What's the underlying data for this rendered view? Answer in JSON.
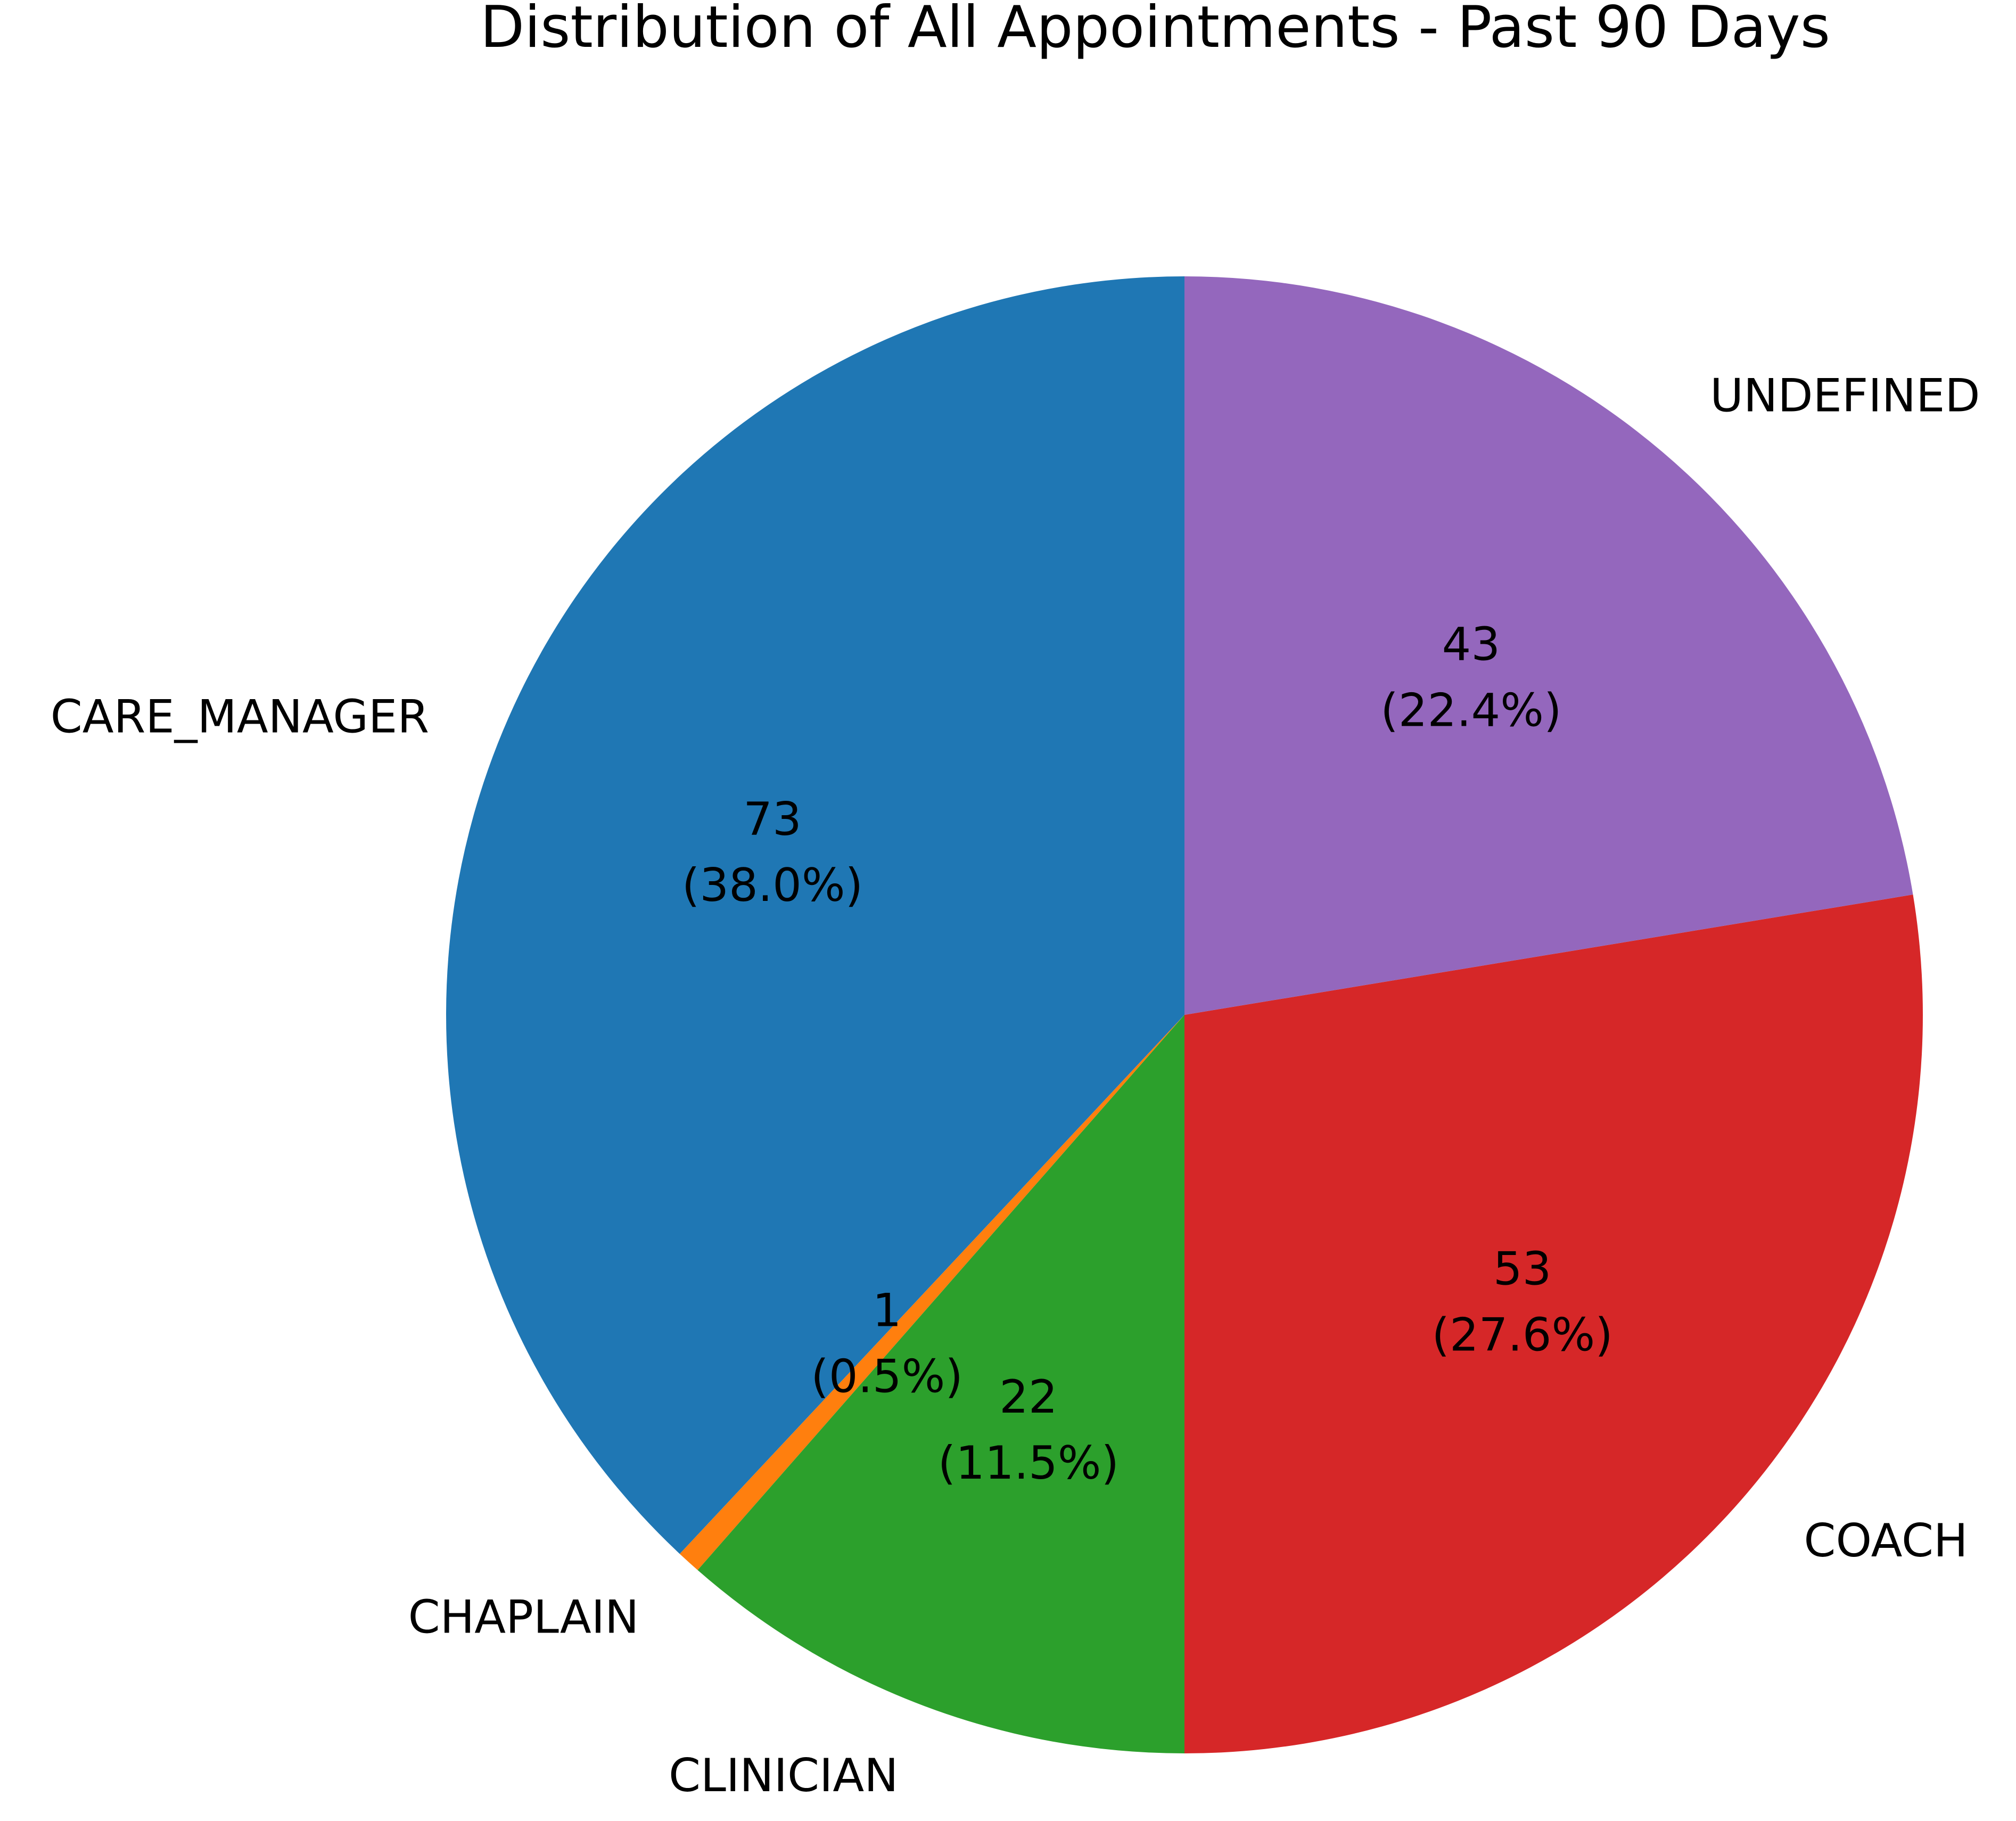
{
  "chart_data": {
    "type": "pie",
    "title": "Distribution of All Appointments - Past 90 Days",
    "start_angle_deg": 90,
    "direction": "counterclockwise",
    "slices": [
      {
        "label": "CARE_MANAGER",
        "value": 73,
        "percent_text": "(38.0%)",
        "color": "#1f77b4"
      },
      {
        "label": "CHAPLAIN",
        "value": 1,
        "percent_text": "(0.5%)",
        "color": "#ff7f0e"
      },
      {
        "label": "CLINICIAN",
        "value": 22,
        "percent_text": "(11.5%)",
        "color": "#2ca02c"
      },
      {
        "label": "COACH",
        "value": 53,
        "percent_text": "(27.6%)",
        "color": "#d62728"
      },
      {
        "label": "UNDEFINED",
        "value": 43,
        "percent_text": "(22.4%)",
        "color": "#9467bd"
      }
    ]
  }
}
